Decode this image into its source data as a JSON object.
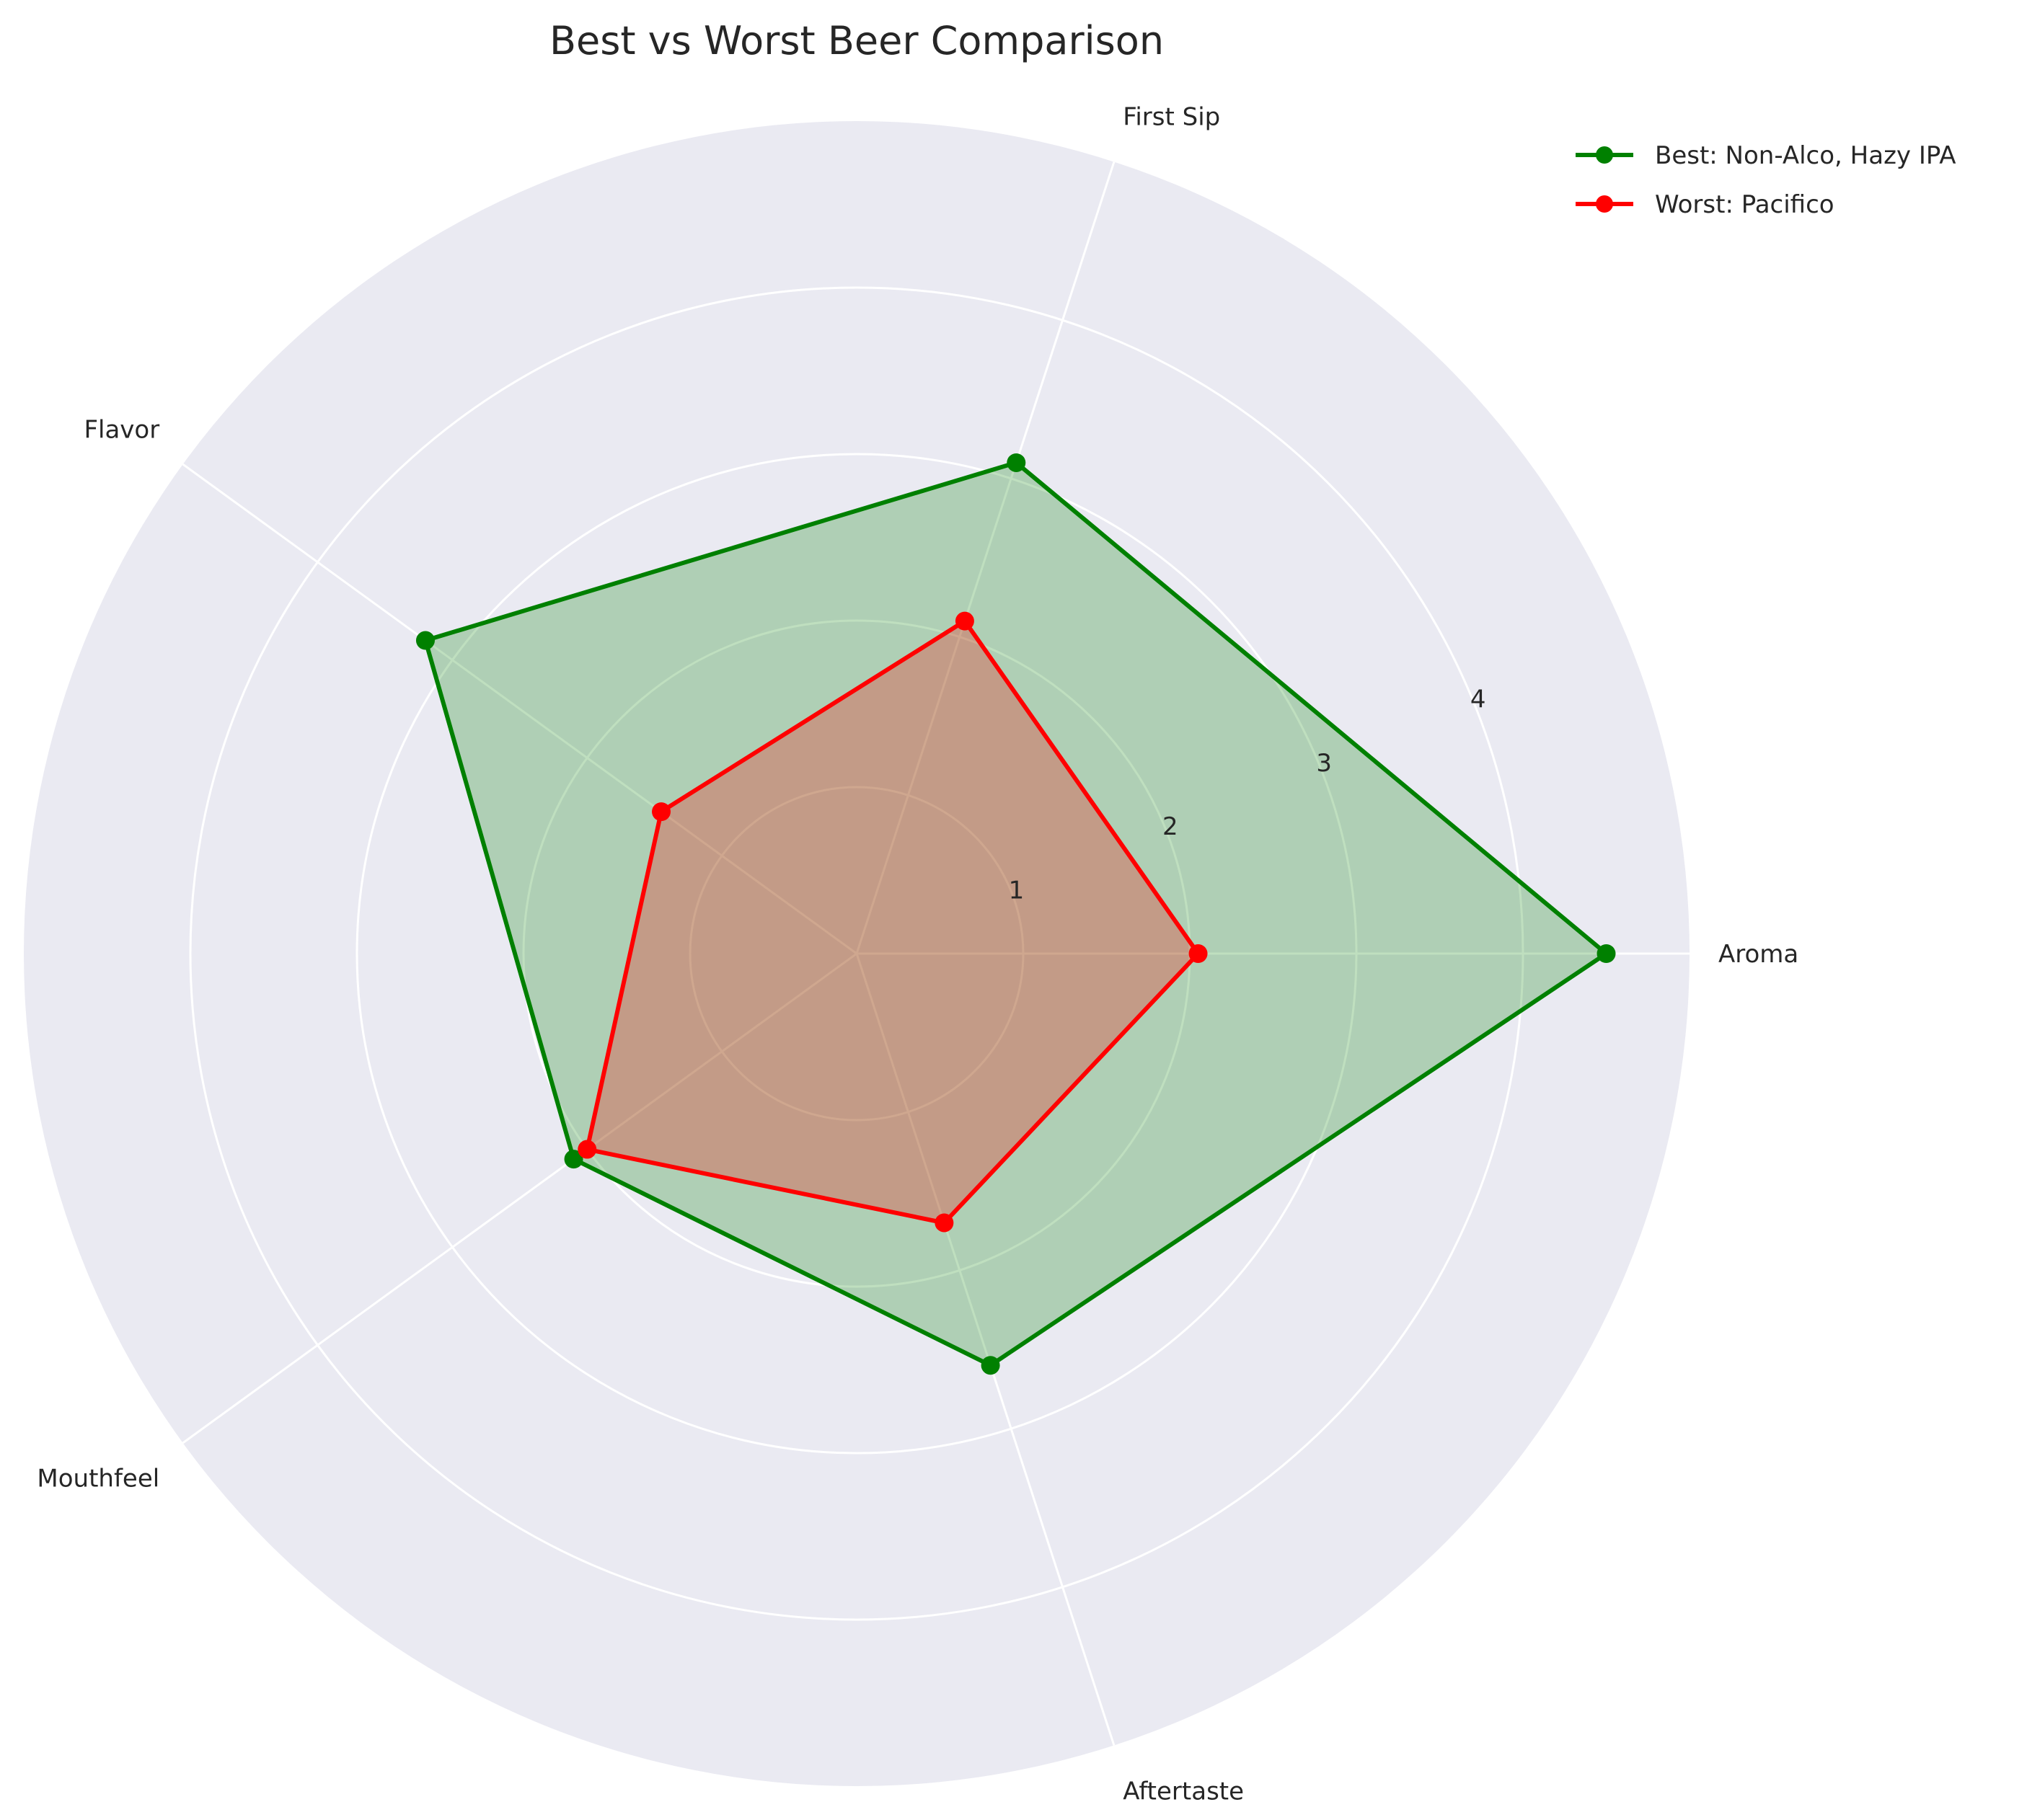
{
  "chart_data": {
    "type": "radar",
    "title": "Best vs Worst Beer Comparison",
    "categories": [
      "Aroma",
      "First Sip",
      "Flavor",
      "Mouthfeel",
      "Aftertaste"
    ],
    "series": [
      {
        "name": "Best: Non-Alco, Hazy IPA",
        "values": [
          4.5,
          3.1,
          3.2,
          2.1,
          2.6
        ],
        "color": "#008000"
      },
      {
        "name": "Worst: Pacifico",
        "values": [
          2.05,
          2.1,
          1.45,
          2.0,
          1.7
        ],
        "color": "#ff0000"
      }
    ],
    "r_ticks": [
      1,
      2,
      3,
      4
    ],
    "r_range": [
      0,
      5
    ],
    "grid": true,
    "legend_position": "top-right",
    "background_color": "#eaeaf2",
    "grid_color": "#ffffff"
  }
}
